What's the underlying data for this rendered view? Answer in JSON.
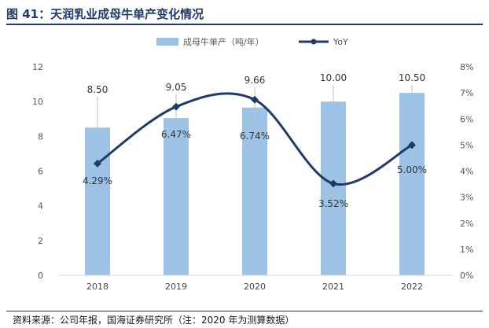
{
  "title": "图 41：天润乳业成母牛单产变化情况",
  "source": "资料来源：公司年报，国海证券研究所（注：2020 年为测算数据）",
  "colors": {
    "bar": "#9cc3e6",
    "line": "#1f3b66",
    "title": "#1f3b66"
  },
  "chart_data": {
    "type": "bar+line",
    "categories": [
      "2018",
      "2019",
      "2020",
      "2021",
      "2022"
    ],
    "series": [
      {
        "name": "成母牛单产（吨/年）",
        "type": "bar",
        "axis": "left",
        "values": [
          8.5,
          9.05,
          9.66,
          10.0,
          10.5
        ],
        "labels": [
          "8.50",
          "9.05",
          "9.66",
          "10.00",
          "10.50"
        ]
      },
      {
        "name": "YoY",
        "type": "line",
        "axis": "right",
        "values": [
          4.29,
          6.47,
          6.74,
          3.52,
          5.0
        ],
        "labels": [
          "4.29%",
          "6.47%",
          "6.74%",
          "3.52%",
          "5.00%"
        ]
      }
    ],
    "y_left": {
      "min": 0,
      "max": 12,
      "ticks": [
        "0",
        "2",
        "4",
        "6",
        "8",
        "10",
        "12"
      ]
    },
    "y_right": {
      "min": 0,
      "max": 8,
      "ticks": [
        "0%",
        "1%",
        "2%",
        "3%",
        "4%",
        "5%",
        "6%",
        "7%",
        "8%"
      ]
    },
    "legend": "top-center"
  }
}
